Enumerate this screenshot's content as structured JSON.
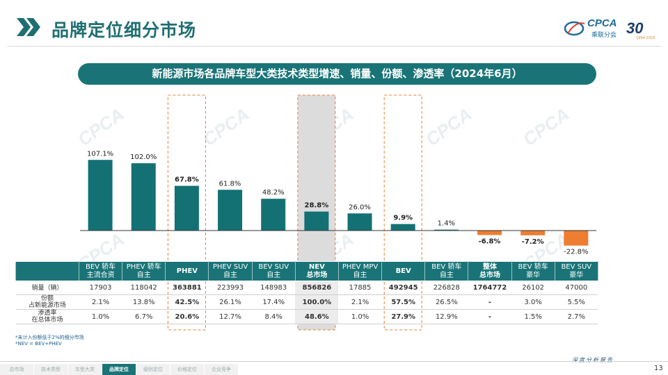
{
  "header": {
    "title": "品牌定位细分市场",
    "logo_text": "CPCA",
    "logo_sub": "乘联分会",
    "anniv_number": "30",
    "anniv_sub": "1994-2024"
  },
  "chart_title": "新能源市场各品牌车型大类技术类型增速、销量、份额、渗透率（2024年6月）",
  "chart_data": {
    "type": "bar",
    "title": "新能源市场各品牌车型大类技术类型增速、销量、份额、渗透率（2024年6月）",
    "categories": [
      "BEV 轿车 主流合资",
      "PHEV 轿车 自主",
      "PHEV",
      "PHEV SUV 自主",
      "BEV SUV 自主",
      "NEV 总市场",
      "PHEV MPV 自主",
      "BEV",
      "BEV 轿车 自主",
      "整体 总市场",
      "BEV 轿车 豪华",
      "BEV SUV 豪华"
    ],
    "values": [
      107.1,
      102.0,
      67.8,
      61.8,
      48.2,
      28.8,
      26.0,
      9.9,
      1.4,
      -6.8,
      -7.2,
      -22.8
    ],
    "value_labels": [
      "107.1%",
      "102.0%",
      "67.8%",
      "61.8%",
      "48.2%",
      "28.8%",
      "26.0%",
      "9.9%",
      "1.4%",
      "-6.8%",
      "-7.2%",
      "-22.8%"
    ],
    "bold_labels": [
      false,
      false,
      true,
      false,
      false,
      true,
      false,
      true,
      false,
      true,
      true,
      false
    ],
    "series_name": "增速",
    "ylim": [
      -30,
      115
    ],
    "colors": {
      "positive": "#137174",
      "negative": "#ee7d31",
      "highlight_box": "#ee7d31",
      "highlight_fill": "#dcdcdc"
    },
    "highlight_outline_index": [
      2,
      7
    ],
    "highlight_shaded_index": [
      5
    ]
  },
  "table": {
    "headers": [
      {
        "l1": "BEV 轿车",
        "l2": "主流合资",
        "bold": false
      },
      {
        "l1": "PHEV 轿车",
        "l2": "自主",
        "bold": false
      },
      {
        "l1": "PHEV",
        "l2": "",
        "bold": true
      },
      {
        "l1": "PHEV SUV",
        "l2": "自主",
        "bold": false
      },
      {
        "l1": "BEV SUV",
        "l2": "自主",
        "bold": false
      },
      {
        "l1": "NEV",
        "l2": "总市场",
        "bold": true
      },
      {
        "l1": "PHEV MPV",
        "l2": "自主",
        "bold": false
      },
      {
        "l1": "BEV",
        "l2": "",
        "bold": true
      },
      {
        "l1": "BEV 轿车",
        "l2": "自主",
        "bold": false
      },
      {
        "l1": "整体",
        "l2": "总市场",
        "bold": true
      },
      {
        "l1": "BEV 轿车",
        "l2": "豪华",
        "bold": false
      },
      {
        "l1": "BEV SUV",
        "l2": "豪华",
        "bold": false
      }
    ],
    "rows": [
      {
        "label_l1": "销量（辆）",
        "label_l2": "",
        "cells": [
          "17903",
          "118042",
          "363881",
          "223993",
          "148983",
          "856826",
          "17885",
          "492945",
          "226828",
          "1764772",
          "26102",
          "47000"
        ]
      },
      {
        "label_l1": "份额",
        "label_l2": "占新能源市场",
        "cells": [
          "2.1%",
          "13.8%",
          "42.5%",
          "26.1%",
          "17.4%",
          "100.0%",
          "2.1%",
          "57.5%",
          "26.5%",
          "-",
          "3.0%",
          "5.5%"
        ]
      },
      {
        "label_l1": "渗透率",
        "label_l2": "在总体市场",
        "cells": [
          "1.0%",
          "6.7%",
          "20.6%",
          "12.7%",
          "8.4%",
          "48.6%",
          "1.0%",
          "27.9%",
          "12.9%",
          "-",
          "1.5%",
          "2.7%"
        ]
      }
    ],
    "bold_cols": [
      2,
      5,
      7,
      9
    ]
  },
  "footnotes": [
    "*未计入份额低于2%的细分市场",
    "*NEV = BEV+PHEV"
  ],
  "footer": {
    "tagline": "深度分析报告",
    "nav": [
      "总市场",
      "技术类型",
      "车型大类",
      "品牌定位",
      "级别定位",
      "价格定位",
      "企业竞争"
    ],
    "active_nav": 3,
    "page_number": "13"
  }
}
